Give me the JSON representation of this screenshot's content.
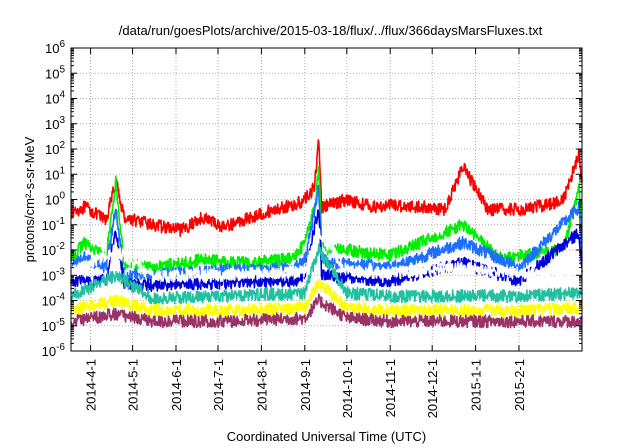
{
  "chart_data": {
    "type": "line",
    "title": "/data/run/goesPlots/archive/2015-03-18/flux/../flux/366daysMarsFluxes.txt",
    "xlabel": "Coordinated Universal Time (UTC)",
    "ylabel": "protons/cm²-s-sr-MeV",
    "yscale": "log",
    "ylim": [
      1e-06,
      1000000.0
    ],
    "y_tick_exponents": [
      -6,
      -5,
      -4,
      -3,
      -2,
      -1,
      0,
      1,
      2,
      3,
      4,
      5,
      6
    ],
    "xlim": [
      "2014-03-18",
      "2015-03-18"
    ],
    "x_ticks": [
      "2014-4-1",
      "2014-5-1",
      "2014-6-1",
      "2014-7-1",
      "2014-8-1",
      "2014-9-1",
      "2014-10-1",
      "2014-11-1",
      "2014-12-1",
      "2015-1-1",
      "2015-2-1"
    ],
    "grid": true,
    "legend": "none",
    "series": [
      {
        "color": "#ff0000",
        "x": [
          "2014-03-18",
          "2014-03-28",
          "2014-04-12",
          "2014-04-19",
          "2014-04-25",
          "2014-05-15",
          "2014-06-05",
          "2014-06-20",
          "2014-07-05",
          "2014-07-25",
          "2014-08-10",
          "2014-08-25",
          "2014-09-01",
          "2014-09-08",
          "2014-09-11",
          "2014-09-13",
          "2014-09-18",
          "2014-10-01",
          "2014-10-20",
          "2014-11-01",
          "2014-11-25",
          "2014-12-10",
          "2014-12-23",
          "2015-01-10",
          "2015-02-01",
          "2015-02-20",
          "2015-03-05",
          "2015-03-16",
          "2015-03-18"
        ],
        "y": [
          0.3,
          0.5,
          0.15,
          5,
          0.2,
          0.1,
          0.06,
          0.2,
          0.08,
          0.2,
          0.4,
          0.6,
          1,
          3,
          300,
          0.5,
          0.6,
          1,
          0.5,
          0.6,
          0.5,
          0.4,
          20,
          0.4,
          0.4,
          0.6,
          1,
          70,
          5
        ]
      },
      {
        "color": "#00ee00",
        "x": [
          "2014-03-18",
          "2014-03-28",
          "2014-04-12",
          "2014-04-19",
          "2014-04-25",
          "2014-05-15",
          "2014-06-20",
          "2014-07-25",
          "2014-08-25",
          "2014-09-01",
          "2014-09-08",
          "2014-09-11",
          "2014-09-13",
          "2014-09-18",
          "2014-10-01",
          "2014-11-01",
          "2014-12-23",
          "2015-01-20",
          "2015-02-01",
          "2015-03-05",
          "2015-03-16",
          "2015-03-18"
        ],
        "y": [
          0.005,
          0.02,
          0.005,
          5,
          0.003,
          0.002,
          0.004,
          0.003,
          0.005,
          0.02,
          0.5,
          20,
          0.02,
          0.01,
          0.01,
          0.006,
          0.1,
          0.004,
          0.006,
          0.01,
          3,
          0.01
        ]
      },
      {
        "color": "#1e6fff",
        "x": [
          "2014-03-18",
          "2014-03-28",
          "2014-04-12",
          "2014-04-19",
          "2014-04-25",
          "2014-05-15",
          "2014-07-05",
          "2014-08-25",
          "2014-09-01",
          "2014-09-11",
          "2014-09-13",
          "2014-09-18",
          "2014-10-01",
          "2014-11-01",
          "2014-12-23",
          "2015-02-01",
          "2015-03-16",
          "2015-03-18"
        ],
        "y": [
          0.002,
          0.005,
          0.002,
          0.5,
          0.001,
          0.001,
          0.0015,
          0.002,
          0.004,
          3,
          0.005,
          0.003,
          0.003,
          0.002,
          0.02,
          0.002,
          0.5,
          0.003
        ]
      },
      {
        "color": "#0000dd",
        "x": [
          "2014-03-18",
          "2014-04-12",
          "2014-04-19",
          "2014-04-25",
          "2014-05-15",
          "2014-07-05",
          "2014-08-25",
          "2014-09-01",
          "2014-09-11",
          "2014-09-13",
          "2014-10-01",
          "2014-11-01",
          "2014-12-23",
          "2015-02-01",
          "2015-03-16",
          "2015-03-18"
        ],
        "y": [
          0.0006,
          0.0006,
          0.05,
          0.0005,
          0.0004,
          0.0005,
          0.0006,
          0.001,
          0.5,
          0.001,
          0.0008,
          0.0006,
          0.003,
          0.0006,
          0.05,
          0.0008
        ]
      },
      {
        "color": "#ffffff",
        "x": [
          "2014-03-18",
          "2014-04-19",
          "2014-05-15",
          "2014-07-05",
          "2014-09-01",
          "2014-09-11",
          "2014-10-01",
          "2014-11-01",
          "2014-12-23",
          "2015-02-01",
          "2015-03-18"
        ],
        "y": [
          0.0012,
          0.01,
          0.0009,
          0.001,
          0.0015,
          0.05,
          0.0015,
          0.0012,
          0.002,
          0.0012,
          0.0015
        ]
      },
      {
        "color": "#20c0a0",
        "x": [
          "2014-03-18",
          "2014-04-19",
          "2014-05-15",
          "2014-07-05",
          "2014-09-01",
          "2014-09-11",
          "2014-10-01",
          "2014-11-01",
          "2015-02-01",
          "2015-03-18"
        ],
        "y": [
          0.00015,
          0.001,
          0.00012,
          0.00015,
          0.0002,
          0.01,
          0.0002,
          0.00015,
          0.00015,
          0.0002
        ]
      },
      {
        "color": "#ffff00",
        "x": [
          "2014-03-18",
          "2014-04-19",
          "2014-05-15",
          "2014-07-05",
          "2014-09-01",
          "2014-09-11",
          "2014-10-01",
          "2014-11-01",
          "2015-02-01",
          "2015-03-18"
        ],
        "y": [
          4e-05,
          0.0001,
          4e-05,
          4e-05,
          5e-05,
          0.0005,
          5e-05,
          4e-05,
          4e-05,
          5e-05
        ]
      },
      {
        "color": "#993366",
        "x": [
          "2014-03-18",
          "2014-04-19",
          "2014-05-15",
          "2014-07-05",
          "2014-09-01",
          "2014-09-11",
          "2014-10-01",
          "2014-11-01",
          "2015-02-01",
          "2015-03-18"
        ],
        "y": [
          1.5e-05,
          3e-05,
          1.5e-05,
          1.5e-05,
          2e-05,
          0.0001,
          2e-05,
          1.5e-05,
          1.5e-05,
          1.5e-05
        ]
      }
    ]
  }
}
